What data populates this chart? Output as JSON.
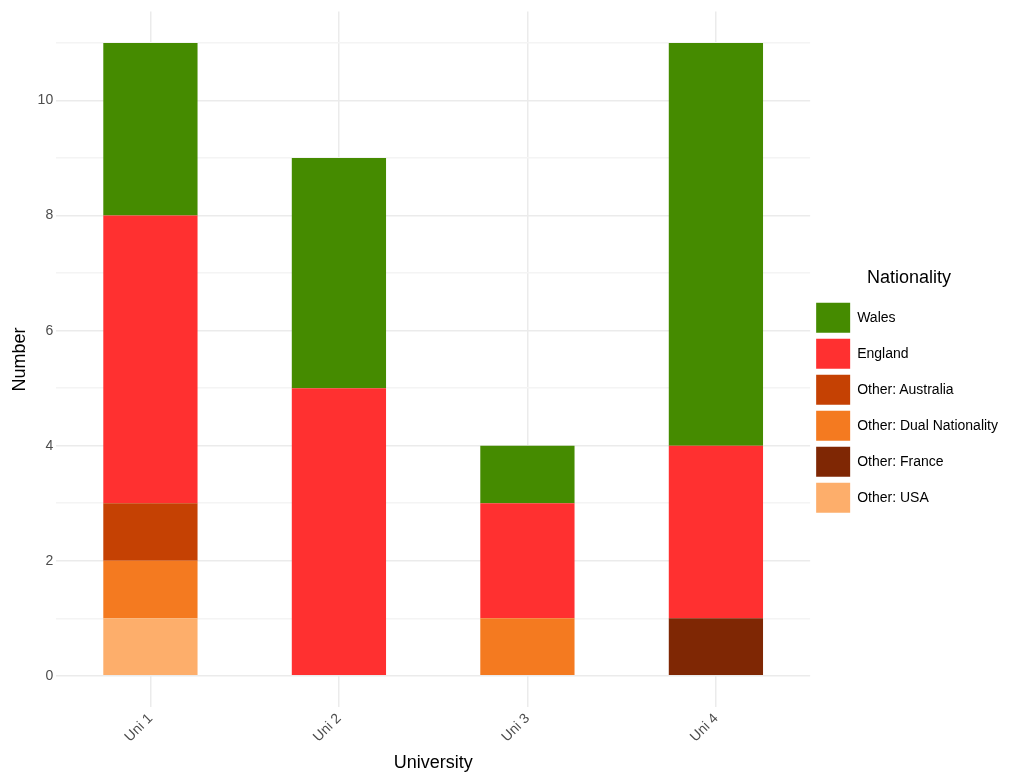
{
  "chart_data": {
    "type": "bar",
    "stacked": true,
    "xlabel": "University",
    "ylabel": "Number",
    "legend_title": "Nationality",
    "legend": "right",
    "grid": true,
    "categories": [
      "Uni 1",
      "Uni 2",
      "Uni 3",
      "Uni 4"
    ],
    "series": [
      {
        "name": "Other: USA",
        "color": "#fdae6b",
        "values": [
          1,
          0,
          0,
          0
        ]
      },
      {
        "name": "Other: France",
        "color": "#7f2704",
        "values": [
          0,
          0,
          0,
          1
        ]
      },
      {
        "name": "Other: Dual Nationality",
        "color": "#f47a20",
        "values": [
          1,
          0,
          1,
          0
        ]
      },
      {
        "name": "Other: Australia",
        "color": "#c54103",
        "values": [
          1,
          0,
          0,
          0
        ]
      },
      {
        "name": "England",
        "color": "#ff3030",
        "values": [
          5,
          5,
          2,
          3
        ]
      },
      {
        "name": "Wales",
        "color": "#458b00",
        "values": [
          3,
          4,
          1,
          7
        ]
      }
    ],
    "ylim": [
      -0.55,
      11.55
    ],
    "yticks": [
      0,
      {
        "value": 1,
        "label": null
      },
      2,
      {
        "value": 3,
        "label": null
      },
      4,
      {
        "value": 5,
        "label": null
      },
      6,
      {
        "value": 7,
        "label": null
      },
      8,
      {
        "value": 9,
        "label": null
      },
      10,
      {
        "value": 11,
        "label": null
      }
    ]
  }
}
